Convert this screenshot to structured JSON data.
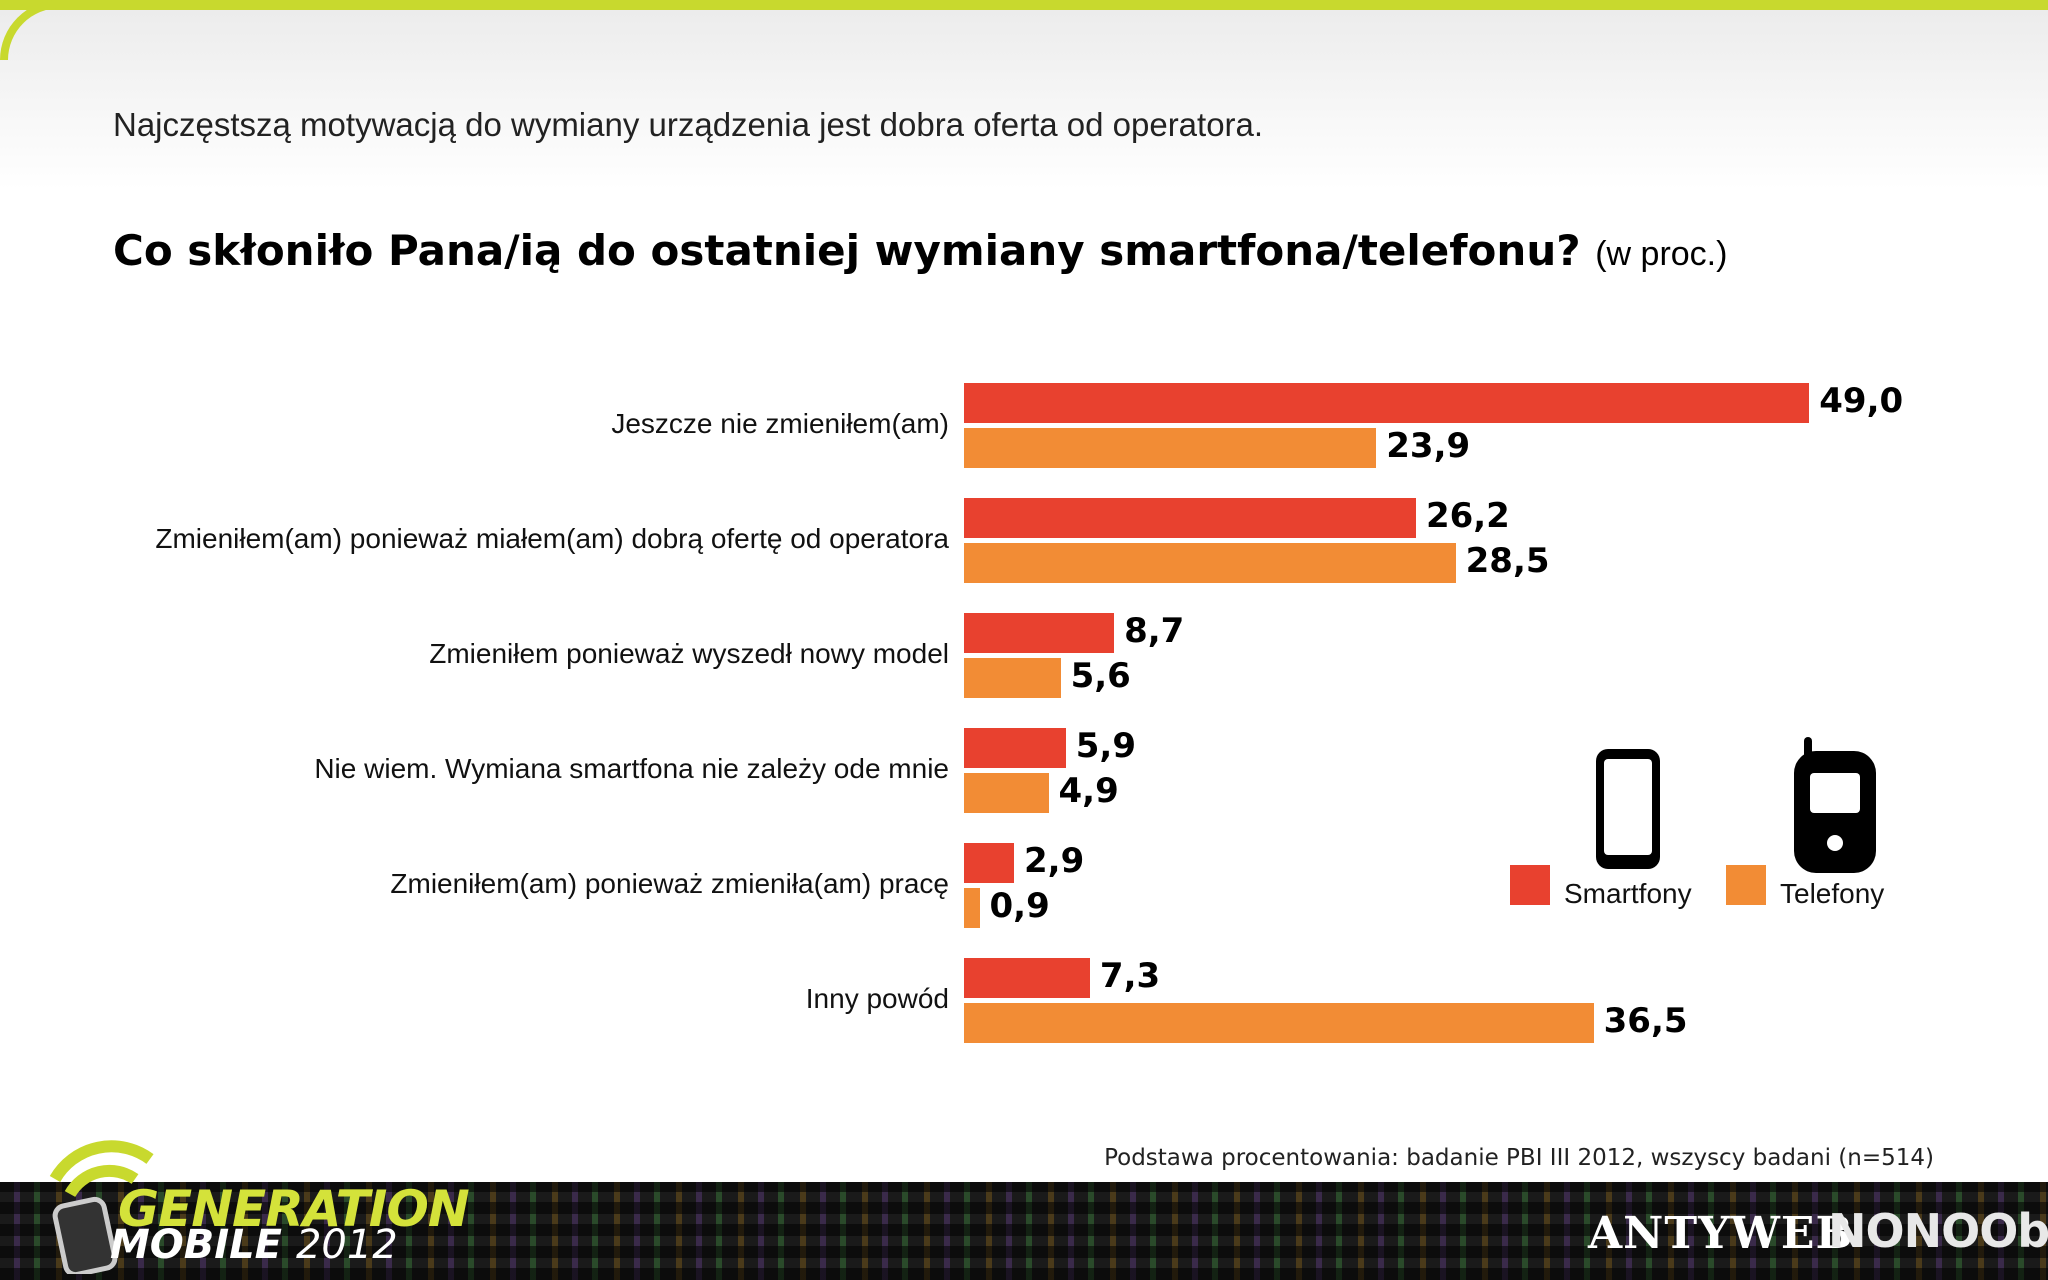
{
  "header": {
    "subtitle": "Najczęstszą motywacją do wymiany urządzenia jest dobra oferta od operatora.",
    "question": "Co skłoniło Pana/ią do ostatniej wymiany smartfona/telefonu?",
    "unit": "(w proc.)"
  },
  "colors": {
    "smartfony": "#e8412f",
    "telefony": "#f28c35",
    "accent": "#c8d92e"
  },
  "chart_data": {
    "type": "bar",
    "orientation": "horizontal",
    "categories": [
      "Jeszcze nie zmieniłem(am)",
      "Zmieniłem(am) ponieważ miałem(am) dobrą ofertę od operatora",
      "Zmieniłem ponieważ wyszedł nowy model",
      "Nie wiem. Wymiana smartfona nie zależy ode mnie",
      "Zmieniłem(am) ponieważ zmieniła(am) pracę",
      "Inny powód"
    ],
    "series": [
      {
        "name": "Smartfony",
        "values": [
          49.0,
          26.2,
          8.7,
          5.9,
          2.9,
          7.3
        ],
        "labels": [
          "49,0",
          "26,2",
          "8,7",
          "5,9",
          "2,9",
          "7,3"
        ]
      },
      {
        "name": "Telefony",
        "values": [
          23.9,
          28.5,
          5.6,
          4.9,
          0.9,
          36.5
        ],
        "labels": [
          "23,9",
          "28,5",
          "5,6",
          "4,9",
          "0,9",
          "36,5"
        ]
      }
    ],
    "title": "Co skłoniło Pana/ią do ostatniej wymiany smartfona/telefonu?",
    "xlim": [
      0,
      50
    ],
    "grid": false,
    "legend": "bottom-right"
  },
  "legend": {
    "smartfony_label": "Smartfony",
    "telefony_label": "Telefony",
    "smartphone_icon": "smartphone-icon",
    "phone_icon": "feature-phone-icon"
  },
  "source": "Podstawa procentowania: badanie PBI III 2012, wszyscy badani (n=514)",
  "footer": {
    "brand_line1": "GENERATION",
    "brand_line2": "MOBILE",
    "brand_year": "2012",
    "partner1": "ANTYWEB",
    "partner2": "NONOObS"
  }
}
